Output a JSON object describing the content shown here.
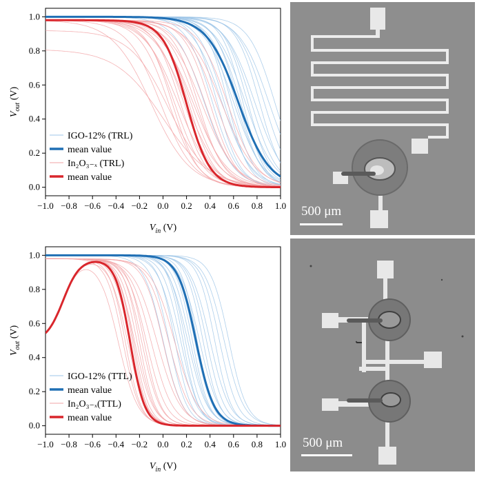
{
  "chart_data": [
    {
      "type": "line",
      "xlabel": "V_in (V)",
      "ylabel": "V_out (V)",
      "xlim": [
        -1.0,
        1.0
      ],
      "ylim": [
        -0.05,
        1.05
      ],
      "xticks": [
        "−1.0",
        "−0.8",
        "−0.6",
        "−0.4",
        "−0.2",
        "0.0",
        "0.2",
        "0.4",
        "0.6",
        "0.8",
        "1.0"
      ],
      "yticks": [
        "0.0",
        "0.2",
        "0.4",
        "0.6",
        "0.8",
        "1.0"
      ],
      "grid": false,
      "legend_placement": "lower-left",
      "legend": [
        {
          "label": "IGO-12% (TRL)",
          "color": "#9ec5e8",
          "width": "thin"
        },
        {
          "label": "mean value",
          "color": "#1f6fb4",
          "width": "thick"
        },
        {
          "label": "In₂O₃₋ₓ (TRL)",
          "color": "#f2a3a6",
          "width": "thin"
        },
        {
          "label": "mean value",
          "color": "#d9262c",
          "width": "thick"
        }
      ],
      "series": [
        {
          "name": "IGO-12% (TRL)",
          "role": "thin",
          "color": "#9ec5e8",
          "vhigh": 1.0,
          "v50": [
            0.35,
            0.42,
            0.46,
            0.5,
            0.52,
            0.55,
            0.58,
            0.6,
            0.62,
            0.64,
            0.66,
            0.68,
            0.7,
            0.72,
            0.75,
            0.78,
            0.82,
            0.86,
            0.9,
            0.95
          ],
          "k": [
            8,
            9,
            10,
            8,
            9,
            11,
            10,
            8,
            9,
            10,
            9,
            11,
            8,
            10,
            9,
            8,
            10,
            9,
            8,
            9
          ]
        },
        {
          "name": "mean value",
          "role": "mean",
          "color": "#1f6fb4",
          "vhigh": 1.0,
          "v50": [
            0.64
          ],
          "k": [
            7.5
          ]
        },
        {
          "name": "In₂O₃₋ₓ (TRL)",
          "role": "thin",
          "color": "#f2a3a6",
          "vhigh": 0.98,
          "v50": [
            -0.1,
            -0.02,
            0.05,
            0.08,
            0.1,
            0.13,
            0.15,
            0.18,
            0.2,
            0.22,
            0.24,
            0.26,
            0.28,
            0.3,
            0.33,
            0.36,
            0.4,
            0.45,
            0.5,
            0.55
          ],
          "k": [
            6,
            7,
            8,
            9,
            8,
            7,
            9,
            8,
            7,
            9,
            8,
            7,
            8,
            9,
            7,
            8,
            9,
            8,
            7,
            8
          ],
          "extra": [
            {
              "vhigh": 0.92,
              "v50": 0.05,
              "k": 6
            },
            {
              "vhigh": 0.81,
              "v50": 0.0,
              "k": 5
            }
          ]
        },
        {
          "name": "mean value",
          "role": "mean",
          "color": "#d9262c",
          "vhigh": 0.98,
          "v50": [
            0.2
          ],
          "k": [
            10
          ]
        }
      ]
    },
    {
      "type": "line",
      "xlabel": "V_in (V)",
      "ylabel": "V_out (V)",
      "xlim": [
        -1.0,
        1.0
      ],
      "ylim": [
        -0.05,
        1.05
      ],
      "xticks": [
        "−1.0",
        "−0.8",
        "−0.6",
        "−0.4",
        "−0.2",
        "0.0",
        "0.2",
        "0.4",
        "0.6",
        "0.8",
        "1.0"
      ],
      "yticks": [
        "0.0",
        "0.2",
        "0.4",
        "0.6",
        "0.8",
        "1.0"
      ],
      "grid": false,
      "legend_placement": "lower-left",
      "legend": [
        {
          "label": "IGO-12% (TTL)",
          "color": "#9ec5e8",
          "width": "thin"
        },
        {
          "label": "mean value",
          "color": "#1f6fb4",
          "width": "thick"
        },
        {
          "label": "In₂O₃₋ₓ(TTL)",
          "color": "#f2a3a6",
          "width": "thin"
        },
        {
          "label": "mean value",
          "color": "#d9262c",
          "width": "thick"
        }
      ],
      "series": [
        {
          "name": "IGO-12% (TTL)",
          "role": "thin",
          "color": "#9ec5e8",
          "vhigh": 1.0,
          "v50": [
            0.0,
            0.05,
            0.1,
            0.12,
            0.15,
            0.17,
            0.19,
            0.21,
            0.23,
            0.25,
            0.27,
            0.29,
            0.31,
            0.34,
            0.37,
            0.4,
            0.44,
            0.48,
            0.52,
            0.56
          ],
          "k": [
            12,
            13,
            14,
            12,
            13,
            15,
            14,
            12,
            13,
            14,
            13,
            15,
            12,
            14,
            13,
            12,
            14,
            13,
            12,
            13
          ]
        },
        {
          "name": "mean value",
          "role": "mean",
          "color": "#1f6fb4",
          "vhigh": 1.0,
          "v50": [
            0.28
          ],
          "k": [
            13
          ]
        },
        {
          "name": "In₂O₃₋ₓ(TTL)",
          "role": "thin",
          "color": "#f2a3a6",
          "vhigh": 0.98,
          "v50": [
            -0.38,
            -0.34,
            -0.32,
            -0.3,
            -0.28,
            -0.26,
            -0.25,
            -0.24,
            -0.22,
            -0.2,
            -0.18,
            -0.16,
            -0.14,
            -0.1,
            -0.05,
            0.0,
            0.05,
            0.1
          ],
          "k": [
            12,
            14,
            15,
            13,
            14,
            16,
            15,
            13,
            14,
            15,
            13,
            14,
            12,
            11,
            10,
            12,
            11,
            10
          ],
          "rising": true
        },
        {
          "name": "mean value",
          "role": "mean",
          "color": "#d9262c",
          "vhigh": 0.98,
          "v50": [
            -0.28
          ],
          "k": [
            16
          ],
          "rising": true
        }
      ]
    }
  ],
  "micrographs": [
    {
      "scale_label": "500 μm"
    },
    {
      "scale_label": "500 μm"
    }
  ]
}
